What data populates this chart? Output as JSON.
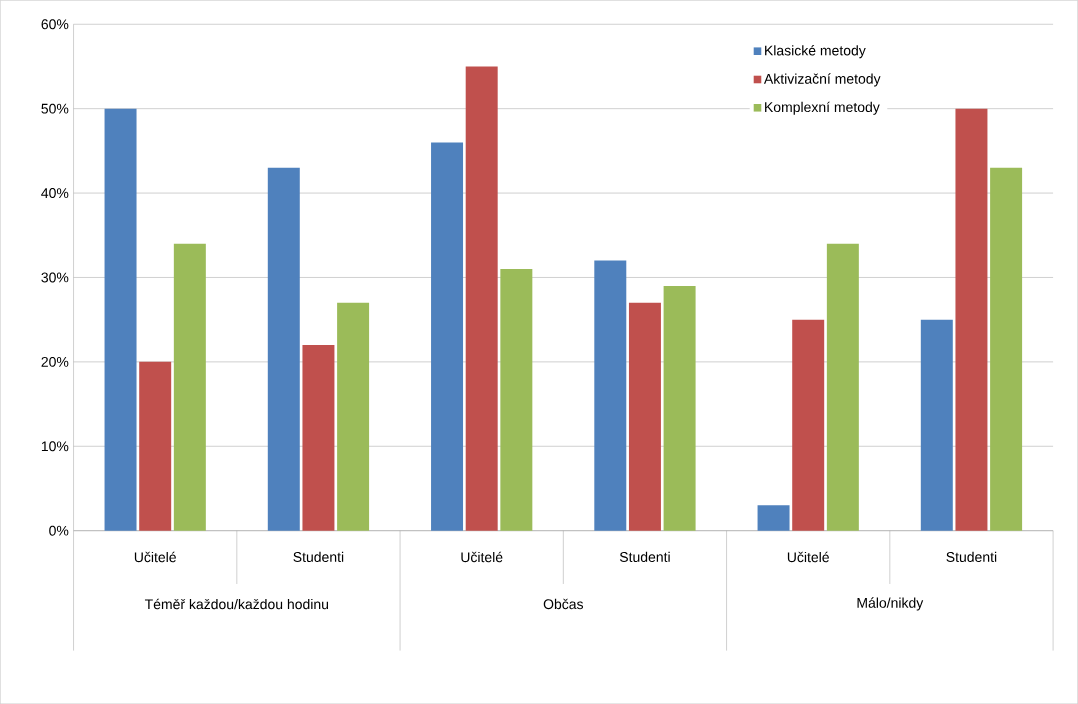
{
  "chart_data": {
    "type": "bar",
    "categories": [
      "Učitelé",
      "Studenti",
      "Učitelé",
      "Studenti",
      "Učitelé",
      "Studenti"
    ],
    "annotations": [
      "Téměř každou/každou  hodinu",
      "Občas",
      "Málo/nikdy"
    ],
    "series": [
      {
        "name": "Klasické metody",
        "color": "#4f81bd",
        "values": [
          50,
          43,
          46,
          32,
          3,
          25
        ]
      },
      {
        "name": "Aktivizační metody",
        "color": "#c0504d",
        "values": [
          20,
          22,
          55,
          27,
          25,
          50
        ]
      },
      {
        "name": "Komplexní metody",
        "color": "#9bbb59",
        "values": [
          34,
          27,
          31,
          29,
          34,
          43
        ]
      }
    ],
    "ylim": [
      0,
      60
    ],
    "yticks": [
      {
        "value": 0,
        "label": "0%"
      },
      {
        "value": 10,
        "label": "10%"
      },
      {
        "value": 20,
        "label": "20%"
      },
      {
        "value": 30,
        "label": "30%"
      },
      {
        "value": 40,
        "label": "40%"
      },
      {
        "value": 50,
        "label": "50%"
      },
      {
        "value": 60,
        "label": "60%"
      }
    ],
    "grid": "y",
    "legend": "top right"
  }
}
